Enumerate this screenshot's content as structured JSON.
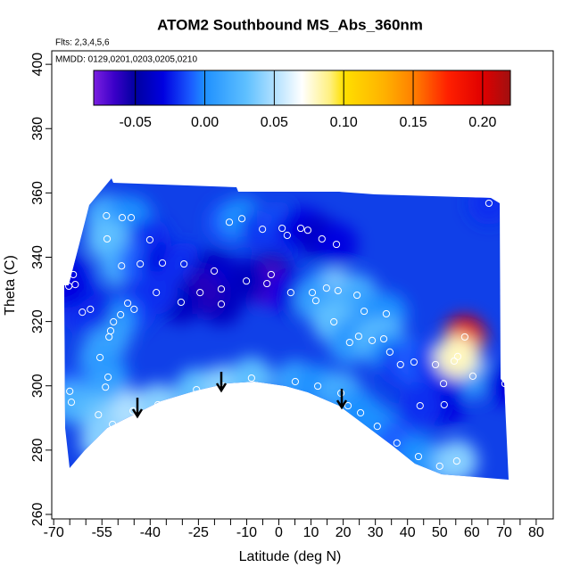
{
  "chart_data": {
    "type": "field-scatter",
    "title": "ATOM2 Southbound MS_Abs_360nm",
    "annotations": [
      "Flts: 2,3,4,5,6",
      "MMDD: 0129,0201,0203,0205,0210"
    ],
    "x_label": "Latitude (deg N)",
    "y_label": "Theta (C)",
    "xlim": [
      -70.6,
      85.3
    ],
    "ylim": [
      258.6,
      404.2
    ],
    "xticks": [
      -70,
      -55,
      -40,
      -25,
      -10,
      0,
      10,
      20,
      30,
      40,
      50,
      60,
      70,
      80
    ],
    "xminor_ticks": [
      -65,
      -60,
      -50,
      -45,
      -35,
      -30,
      -20,
      -15,
      -5,
      5,
      15,
      25,
      35,
      45,
      55,
      65,
      75
    ],
    "yticks": [
      260,
      280,
      300,
      320,
      340,
      360,
      380,
      400
    ],
    "point_color": "#ffffff",
    "field_base_color": "#1040e8",
    "colorbar": {
      "lim": [
        -0.08,
        0.22
      ],
      "ticks": [
        -0.05,
        {
          "value": 0,
          "label": "0.00"
        },
        0.05,
        {
          "value": 0.1,
          "label": "0.10"
        },
        0.15,
        {
          "value": 0.2,
          "label": "0.20"
        }
      ],
      "stops": [
        [
          -0.08,
          "#7b1fe0"
        ],
        [
          -0.065,
          "#3a00c8"
        ],
        [
          -0.05,
          "#0000a0"
        ],
        [
          -0.03,
          "#0000e0"
        ],
        [
          -0.01,
          "#1a5cff"
        ],
        [
          0,
          "#1e90ff"
        ],
        [
          0.03,
          "#5fc0ff"
        ],
        [
          0.05,
          "#b0e0ff"
        ],
        [
          0.07,
          "#ffffff"
        ],
        [
          0.09,
          "#fff080"
        ],
        [
          0.1,
          "#ffe000"
        ],
        [
          0.13,
          "#ffb000"
        ],
        [
          0.15,
          "#ff8000"
        ],
        [
          0.175,
          "#ff2000"
        ],
        [
          0.2,
          "#e00000"
        ],
        [
          0.22,
          "#a01010"
        ]
      ]
    },
    "x": [
      -53.6,
      -48.7,
      -45.9,
      -53.4,
      -40.1,
      -48.9,
      -43.1,
      -36.2,
      -29.5,
      -20.1,
      -15.4,
      -11.5,
      -5.1,
      1.0,
      2.6,
      6.8,
      9.0,
      13.4,
      17.9,
      -17.9,
      -17.9,
      -24.5,
      -30.4,
      -38.1,
      -47.0,
      -45.0,
      -49.2,
      -51.4,
      -52.8,
      -52.3,
      -58.6,
      -61.1,
      -63.9,
      -63.3,
      -65.3,
      -65.0,
      -64.5,
      -55.6,
      -53.1,
      -53.9,
      -56.1,
      -55.3,
      -51.7,
      -45.3,
      -37.6,
      -25.6,
      -17.3,
      -8.5,
      5.1,
      12.1,
      19.3,
      21.5,
      25.4,
      30.6,
      36.7,
      43.4,
      50.0,
      55.3,
      -2.4,
      -3.7,
      3.7,
      10.4,
      14.8,
      18.4,
      11.5,
      24.3,
      26.5,
      33.4,
      17.1,
      22.0,
      24.8,
      29.0,
      32.6,
      34.5,
      37.8,
      42.0,
      48.7,
      54.5,
      57.8,
      60.3,
      51.2,
      51.4,
      43.9,
      70.3,
      65.3,
      -10.1,
      55.6
    ],
    "y": [
      352.9,
      352.3,
      352.3,
      345.7,
      345.4,
      337.3,
      337.9,
      338.2,
      337.9,
      335.7,
      350.9,
      352.0,
      348.7,
      349.0,
      346.8,
      349.0,
      348.4,
      345.7,
      344.0,
      330.1,
      325.4,
      329.0,
      326.0,
      329.0,
      325.7,
      323.8,
      322.1,
      319.9,
      315.2,
      317.1,
      323.8,
      322.9,
      334.6,
      331.5,
      331.0,
      298.3,
      294.9,
      308.8,
      302.7,
      299.6,
      291.0,
      283.0,
      288.0,
      292.2,
      294.1,
      298.8,
      299.9,
      302.4,
      301.3,
      299.9,
      297.7,
      293.8,
      291.6,
      287.4,
      282.2,
      278.0,
      275.0,
      276.6,
      334.6,
      331.8,
      329.0,
      329.0,
      330.4,
      329.6,
      326.5,
      328.2,
      323.2,
      322.4,
      319.9,
      313.5,
      315.4,
      314.1,
      314.6,
      310.5,
      306.6,
      307.4,
      306.6,
      307.7,
      315.2,
      303.0,
      300.7,
      294.1,
      293.8,
      300.7,
      356.8,
      332.6,
      309.1
    ],
    "values": [
      0.02,
      0.01,
      0,
      0.03,
      -0.02,
      0.02,
      -0.01,
      -0.03,
      -0.02,
      -0.04,
      -0.01,
      0,
      -0.02,
      -0.01,
      -0.02,
      -0.03,
      -0.03,
      -0.04,
      -0.03,
      -0.03,
      -0.04,
      -0.06,
      -0.04,
      -0.02,
      -0.03,
      -0.02,
      -0.01,
      0,
      0.02,
      0.01,
      -0.03,
      -0.02,
      -0.03,
      -0.02,
      -0.03,
      -0.01,
      0.02,
      0.01,
      0,
      0.01,
      0.03,
      0.04,
      0.04,
      0.05,
      0.04,
      0.03,
      0.04,
      0.03,
      0.01,
      0,
      0.02,
      0.01,
      0,
      0,
      -0.01,
      0,
      0.01,
      0.04,
      -0.05,
      -0.07,
      -0.03,
      -0.02,
      0,
      0.04,
      0.01,
      0.02,
      0.01,
      0,
      0.03,
      0.01,
      0,
      0.02,
      0.03,
      0,
      -0.02,
      -0.01,
      -0.02,
      0.04,
      0.2,
      0.01,
      -0.02,
      -0.03,
      -0.02,
      -0.03,
      -0.02,
      -0.04,
      0.08
    ]
  }
}
